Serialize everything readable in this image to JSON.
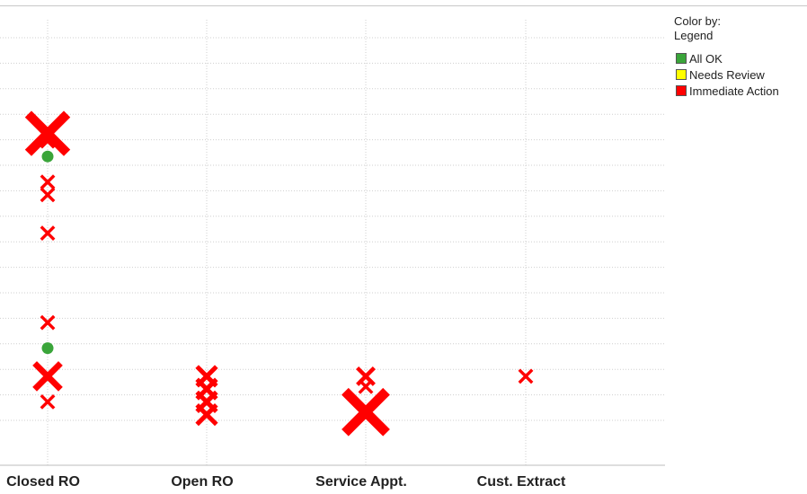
{
  "legend": {
    "title_line1": "Color by:",
    "title_line2": "Legend",
    "items": [
      {
        "label": "All OK",
        "color": "#3aa53a"
      },
      {
        "label": "Needs Review",
        "color": "#ffff00"
      },
      {
        "label": "Immediate Action",
        "color": "#ff0000"
      }
    ]
  },
  "chart_data": {
    "type": "scatter",
    "title": "",
    "xlabel": "",
    "ylabel": "",
    "categories": [
      "Closed RO",
      "Open RO",
      "Service Appt.",
      "Cust. Extract"
    ],
    "grid": true,
    "legend_placement": "top-right",
    "ylim": [
      0,
      17.5
    ],
    "points": [
      {
        "category": "Closed RO",
        "y": 12.7,
        "status": "Immediate Action",
        "marker": "x",
        "magnitude": 3
      },
      {
        "category": "Closed RO",
        "y": 12.4,
        "status": "Immediate Action",
        "marker": "x",
        "magnitude": 1
      },
      {
        "category": "Closed RO",
        "y": 11.8,
        "status": "All OK",
        "marker": "circle",
        "magnitude": 1
      },
      {
        "category": "Closed RO",
        "y": 10.8,
        "status": "Immediate Action",
        "marker": "x",
        "magnitude": 1
      },
      {
        "category": "Closed RO",
        "y": 10.3,
        "status": "Immediate Action",
        "marker": "x",
        "magnitude": 1
      },
      {
        "category": "Closed RO",
        "y": 8.8,
        "status": "Immediate Action",
        "marker": "x",
        "magnitude": 1
      },
      {
        "category": "Closed RO",
        "y": 5.3,
        "status": "Immediate Action",
        "marker": "x",
        "magnitude": 1
      },
      {
        "category": "Closed RO",
        "y": 4.3,
        "status": "All OK",
        "marker": "circle",
        "magnitude": 1
      },
      {
        "category": "Closed RO",
        "y": 3.2,
        "status": "Immediate Action",
        "marker": "x",
        "magnitude": 2
      },
      {
        "category": "Closed RO",
        "y": 2.2,
        "status": "Immediate Action",
        "marker": "x",
        "magnitude": 1
      },
      {
        "category": "Open RO",
        "y": 3.2,
        "status": "Immediate Action",
        "marker": "x",
        "magnitude": 1.5
      },
      {
        "category": "Open RO",
        "y": 2.7,
        "status": "Immediate Action",
        "marker": "x",
        "magnitude": 1.5
      },
      {
        "category": "Open RO",
        "y": 2.2,
        "status": "Immediate Action",
        "marker": "x",
        "magnitude": 1.5
      },
      {
        "category": "Open RO",
        "y": 1.7,
        "status": "Immediate Action",
        "marker": "x",
        "magnitude": 1.5
      },
      {
        "category": "Service Appt.",
        "y": 3.2,
        "status": "Immediate Action",
        "marker": "x",
        "magnitude": 1.3
      },
      {
        "category": "Service Appt.",
        "y": 2.8,
        "status": "Immediate Action",
        "marker": "x",
        "magnitude": 1
      },
      {
        "category": "Service Appt.",
        "y": 1.8,
        "status": "Immediate Action",
        "marker": "x",
        "magnitude": 3.2
      },
      {
        "category": "Cust. Extract",
        "y": 3.2,
        "status": "Immediate Action",
        "marker": "x",
        "magnitude": 1
      }
    ]
  }
}
